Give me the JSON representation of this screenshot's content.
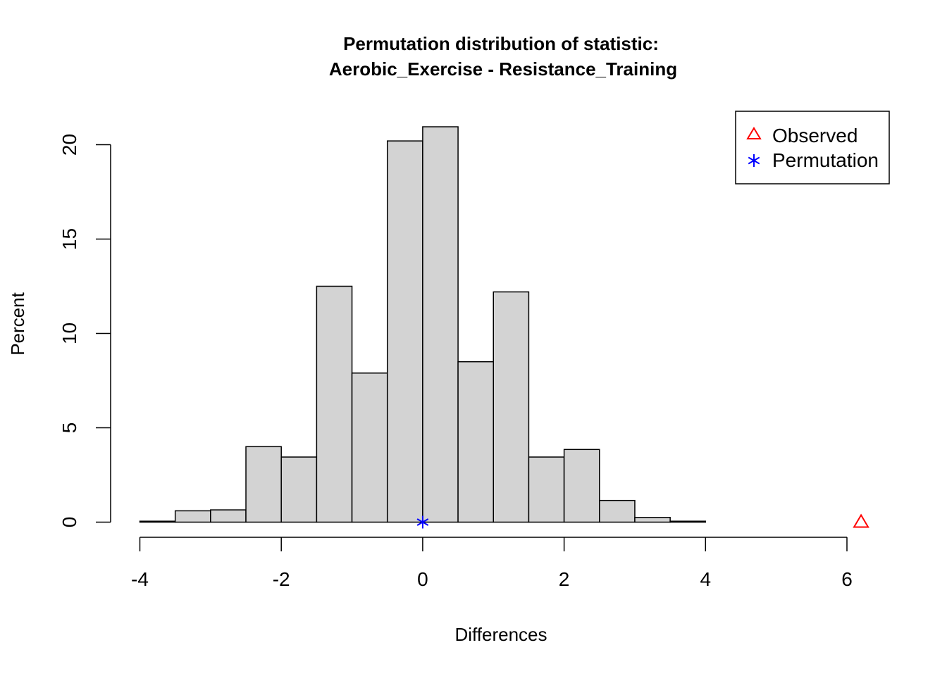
{
  "chart_data": {
    "type": "bar",
    "title": "Permutation distribution of statistic:",
    "subtitle": "Aerobic_Exercise - Resistance_Training",
    "xlabel": "Differences",
    "ylabel": "Percent",
    "xlim": [
      -4,
      6
    ],
    "ylim": [
      0,
      20
    ],
    "x_ticks": [
      -4,
      -2,
      0,
      2,
      4,
      6
    ],
    "y_ticks": [
      0,
      5,
      10,
      15,
      20
    ],
    "bin_edges": [
      -4,
      -3.5,
      -3,
      -2.5,
      -2,
      -1.5,
      -1,
      -0.5,
      0,
      0.5,
      1,
      1.5,
      2,
      2.5,
      3,
      3.5,
      4
    ],
    "values": [
      0.05,
      0.6,
      0.65,
      4.0,
      3.45,
      12.5,
      7.9,
      20.2,
      20.95,
      8.5,
      12.2,
      3.45,
      3.85,
      1.15,
      0.25,
      0.05
    ],
    "bar_color": "#d3d3d3",
    "markers": [
      {
        "name": "Observed",
        "x": 6.2,
        "y": 0,
        "shape": "triangle",
        "color": "#ff0000"
      },
      {
        "name": "Permutation",
        "x": 0,
        "y": 0,
        "shape": "asterisk",
        "color": "#0000ff"
      }
    ],
    "legend": {
      "placement": "top-right",
      "entries": [
        "Observed",
        "Permutation"
      ]
    },
    "grid": false
  }
}
